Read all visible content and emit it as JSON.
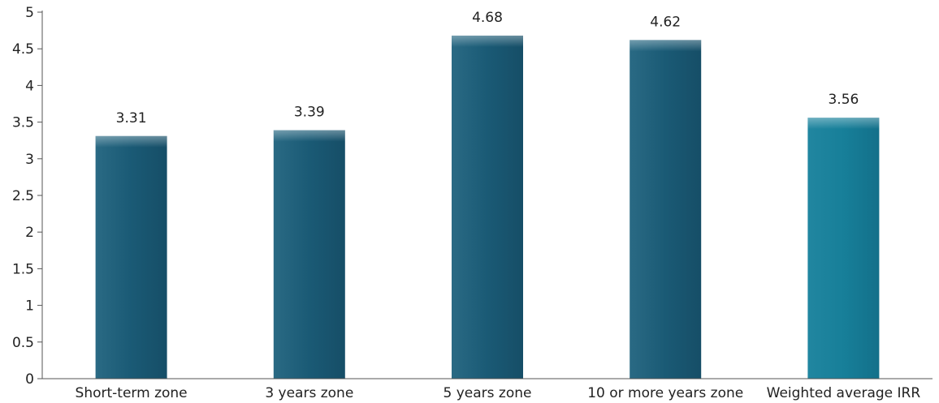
{
  "chart_data": {
    "type": "bar",
    "title": "",
    "xlabel": "",
    "ylabel": "",
    "categories": [
      "Short-term zone",
      "3 years zone",
      "5 years zone",
      "10 or more years zone",
      "Weighted average IRR"
    ],
    "values": [
      3.31,
      3.39,
      4.68,
      4.62,
      3.56
    ],
    "value_labels": [
      "3.31",
      "3.39",
      "4.68",
      "4.62",
      "3.56"
    ],
    "ylim": [
      0,
      5
    ],
    "yticks": [
      0,
      0.5,
      1,
      1.5,
      2,
      2.5,
      3,
      3.5,
      4,
      4.5,
      5
    ],
    "ytick_labels": [
      "0",
      "0.5",
      "1",
      "1.5",
      "2",
      "2.5",
      "3",
      "3.5",
      "4",
      "4.5",
      "5"
    ],
    "grid": false,
    "legend": "none",
    "colors": {
      "bar": "#1d5f7a",
      "bar_highlight": "#177d96",
      "axis": "#555555",
      "text": "#222222"
    }
  }
}
